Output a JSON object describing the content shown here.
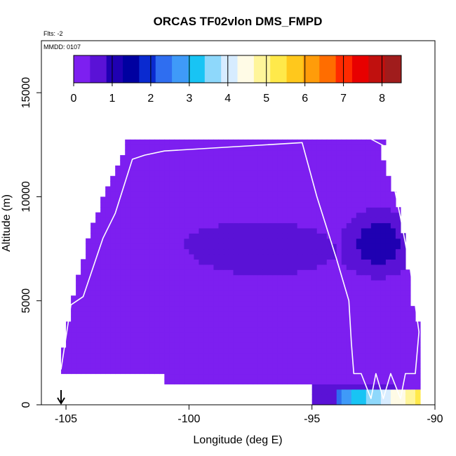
{
  "title": "ORCAS TF02vlon DMS_FMPD",
  "top_left_note": "Flts: -2",
  "date_label": "MMDD: 0107",
  "chart_data": {
    "type": "heatmap",
    "title": "ORCAS TF02vlon DMS_FMPD",
    "xlabel": "Longitude (deg E)",
    "ylabel": "Altitude (m)",
    "xlim": [
      -106,
      -90
    ],
    "ylim": [
      0,
      17500
    ],
    "x_ticks": [
      -105,
      -100,
      -95,
      -90
    ],
    "y_ticks": [
      0,
      5000,
      10000,
      15000
    ],
    "colorbar": {
      "range": [
        0,
        8.5
      ],
      "ticks": [
        0,
        1,
        2,
        3,
        4,
        5,
        6,
        7,
        8
      ],
      "colors": [
        "#7d1ff0",
        "#5a12d6",
        "#1f00b2",
        "#0000a0",
        "#0a2ad0",
        "#2f6ef0",
        "#3f9af8",
        "#18c4f4",
        "#8ed8fb",
        "#d7ecff",
        "#fffbe6",
        "#fff59a",
        "#ffe94a",
        "#ffc81c",
        "#ff9c0a",
        "#ff6d00",
        "#ff2a00",
        "#e80000",
        "#c0100e",
        "#a01c1c"
      ]
    },
    "domain_outline_lon_min": [
      -105.3,
      -104.8,
      -104.0,
      -103.3,
      -102.7,
      -102.6
    ],
    "domain_outline_alt_min": [
      1400,
      4800,
      8500,
      10500,
      12000,
      12700
    ],
    "flight_track": {
      "lon": [
        -105.2,
        -104.8,
        -104.3,
        -103.5,
        -103.0,
        -102.3,
        -101.8,
        -101.0,
        -95.4,
        -94.8,
        -94.0,
        -93.5,
        -93.4,
        -93.3,
        -93.0,
        -92.6,
        -92.4,
        -92.1,
        -91.8,
        -91.4,
        -91.2,
        -90.8,
        -90.65,
        -91.0,
        -91.4,
        -92.0,
        -92.8,
        -93.3,
        -93.5
      ],
      "alt": [
        1700,
        4800,
        5200,
        8000,
        9200,
        11800,
        12000,
        12200,
        12600,
        10000,
        7000,
        5000,
        3000,
        1500,
        1500,
        300,
        1500,
        300,
        1500,
        300,
        1500,
        1500,
        3500,
        6500,
        9000,
        12400,
        12900,
        13000,
        12800
      ]
    },
    "arrow_marker_lon": -105.2
  }
}
